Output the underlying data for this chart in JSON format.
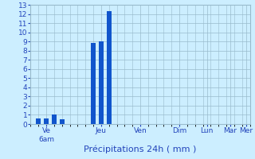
{
  "bar_positions": [
    1,
    2,
    3,
    4,
    8,
    9,
    10
  ],
  "bar_values": [
    0.6,
    0.6,
    1.0,
    0.5,
    8.8,
    9.0,
    12.3
  ],
  "bar_color": "#1155cc",
  "bar_width": 0.6,
  "xlim": [
    0,
    28
  ],
  "ylim": [
    0,
    13
  ],
  "yticks": [
    0,
    1,
    2,
    3,
    4,
    5,
    6,
    7,
    8,
    9,
    10,
    11,
    12,
    13
  ],
  "xtick_positions": [
    2.0,
    9.0,
    14.0,
    19.0,
    22.5,
    25.5,
    27.5
  ],
  "xtick_labels": [
    "Ve\n6am",
    "Jeu",
    "Ven",
    "Dim",
    "Lun",
    "Mar",
    "Mer"
  ],
  "xlabel": "Précipitations 24h ( mm )",
  "background_color": "#cceeff",
  "grid_color": "#99bbcc",
  "tick_color": "#2244bb",
  "label_color": "#2244bb",
  "xlabel_fontsize": 8,
  "ytick_fontsize": 6.5,
  "xtick_fontsize": 6.5
}
